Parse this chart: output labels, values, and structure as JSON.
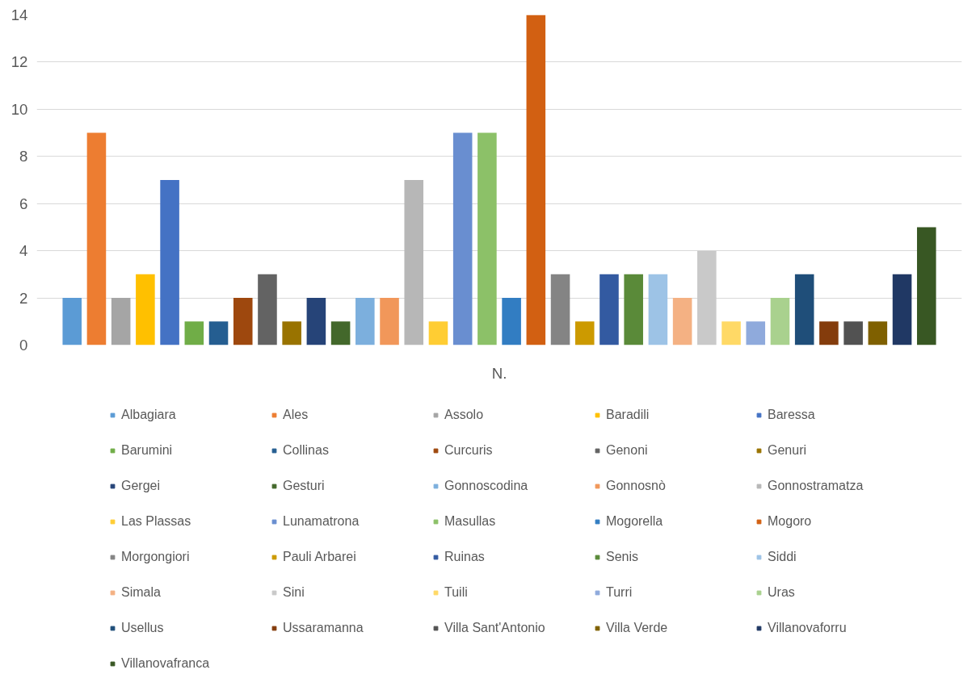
{
  "chart_data": {
    "type": "bar",
    "categories": [
      "N."
    ],
    "ylim": [
      0,
      14
    ],
    "yticks": [
      0,
      2,
      4,
      6,
      8,
      10,
      12,
      14
    ],
    "grid": "y",
    "legend": "bottom",
    "series": [
      {
        "name": "Albagiara",
        "color": "#5b9bd5",
        "values": [
          2
        ]
      },
      {
        "name": "Ales",
        "color": "#ed7d31",
        "values": [
          9
        ]
      },
      {
        "name": "Assolo",
        "color": "#a5a5a5",
        "values": [
          2
        ]
      },
      {
        "name": "Baradili",
        "color": "#ffc000",
        "values": [
          3
        ]
      },
      {
        "name": "Baressa",
        "color": "#4472c4",
        "values": [
          7
        ]
      },
      {
        "name": "Barumini",
        "color": "#70ad47",
        "values": [
          1
        ]
      },
      {
        "name": "Collinas",
        "color": "#255e91",
        "values": [
          1
        ]
      },
      {
        "name": "Curcuris",
        "color": "#9e480e",
        "values": [
          2
        ]
      },
      {
        "name": "Genoni",
        "color": "#636363",
        "values": [
          3
        ]
      },
      {
        "name": "Genuri",
        "color": "#997300",
        "values": [
          1
        ]
      },
      {
        "name": "Gergei",
        "color": "#264478",
        "values": [
          2
        ]
      },
      {
        "name": "Gesturi",
        "color": "#43682b",
        "values": [
          1
        ]
      },
      {
        "name": "Gonnoscodina",
        "color": "#7cafdd",
        "values": [
          2
        ]
      },
      {
        "name": "Gonnosnò",
        "color": "#f1975a",
        "values": [
          2
        ]
      },
      {
        "name": "Gonnostramatza",
        "color": "#b7b7b7",
        "values": [
          7
        ]
      },
      {
        "name": "Las Plassas",
        "color": "#ffcd33",
        "values": [
          1
        ]
      },
      {
        "name": "Lunamatrona",
        "color": "#698ed0",
        "values": [
          9
        ]
      },
      {
        "name": "Masullas",
        "color": "#8cc168",
        "values": [
          9
        ]
      },
      {
        "name": "Mogorella",
        "color": "#327dc2",
        "values": [
          2
        ]
      },
      {
        "name": "Mogoro",
        "color": "#d26012",
        "values": [
          14
        ]
      },
      {
        "name": "Morgongiori",
        "color": "#848484",
        "values": [
          3
        ]
      },
      {
        "name": "Pauli Arbarei",
        "color": "#cc9a00",
        "values": [
          1
        ]
      },
      {
        "name": "Ruinas",
        "color": "#335aa1",
        "values": [
          3
        ]
      },
      {
        "name": "Senis",
        "color": "#5a8a39",
        "values": [
          3
        ]
      },
      {
        "name": "Siddi",
        "color": "#9dc3e6",
        "values": [
          3
        ]
      },
      {
        "name": "Simala",
        "color": "#f4b183",
        "values": [
          2
        ]
      },
      {
        "name": "Sini",
        "color": "#c9c9c9",
        "values": [
          4
        ]
      },
      {
        "name": "Tuili",
        "color": "#ffd966",
        "values": [
          1
        ]
      },
      {
        "name": "Turri",
        "color": "#8faadc",
        "values": [
          1
        ]
      },
      {
        "name": "Uras",
        "color": "#a9d18e",
        "values": [
          2
        ]
      },
      {
        "name": "Usellus",
        "color": "#1f4e79",
        "values": [
          3
        ]
      },
      {
        "name": "Ussaramanna",
        "color": "#843c0c",
        "values": [
          1
        ]
      },
      {
        "name": "Villa Sant'Antonio",
        "color": "#525252",
        "values": [
          1
        ]
      },
      {
        "name": "Villa Verde",
        "color": "#7f6000",
        "values": [
          1
        ]
      },
      {
        "name": "Villanovaforru",
        "color": "#203864",
        "values": [
          3
        ]
      },
      {
        "name": "Villanovafranca",
        "color": "#385723",
        "values": [
          5
        ]
      }
    ]
  }
}
